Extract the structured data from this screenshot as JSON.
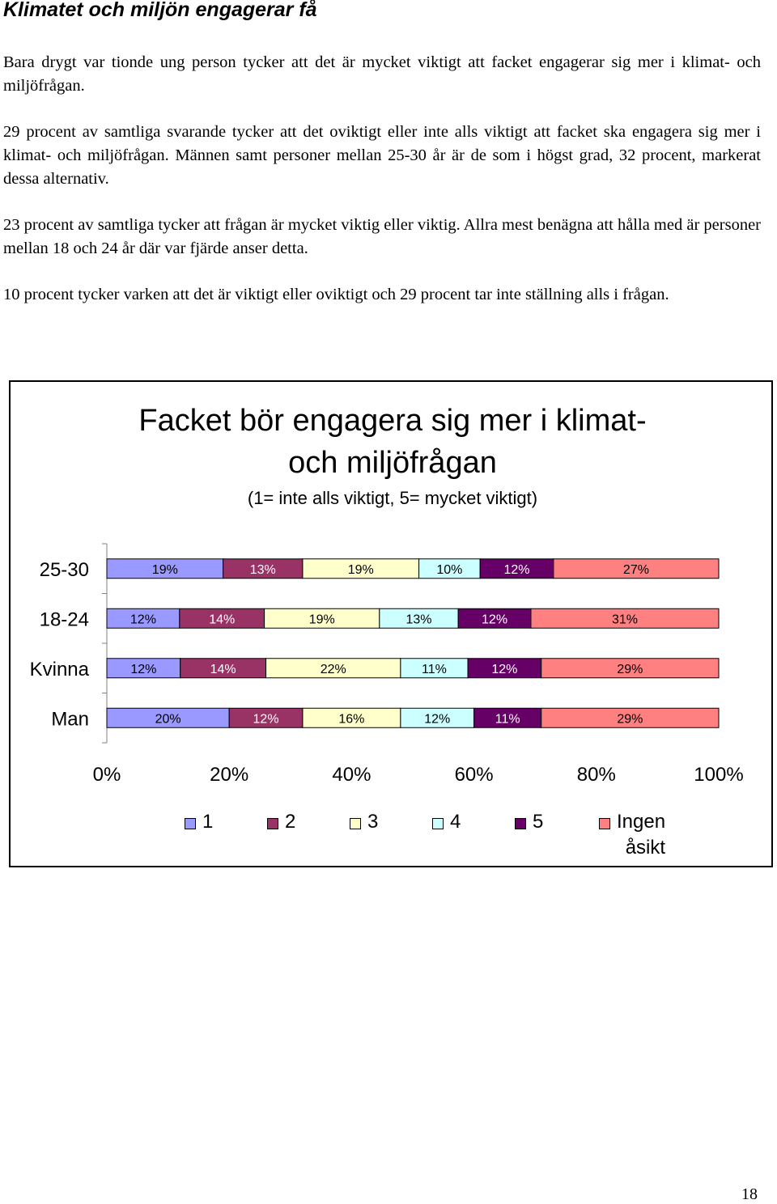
{
  "document": {
    "heading": "Klimatet och miljön engagerar få",
    "paragraphs": [
      "Bara drygt var tionde ung person tycker att det är mycket viktigt att facket engagerar sig mer i klimat- och miljöfrågan.",
      "29 procent av samtliga svarande tycker att det oviktigt eller inte alls viktigt att facket ska engagera sig mer i klimat- och miljöfrågan. Männen samt personer mellan 25-30 år är de som i högst grad, 32 procent, markerat dessa alternativ.",
      "23 procent av samtliga tycker att frågan är mycket viktig eller viktig. Allra mest benägna att hålla med är personer mellan 18 och 24 år där var fjärde anser detta.",
      "10 procent tycker varken att det är viktigt eller oviktigt och 29 procent tar inte ställning alls i frågan."
    ],
    "page_number": "18"
  },
  "chart_data": {
    "type": "bar",
    "orientation": "horizontal",
    "stacked": "percent",
    "title_line1": "Facket bör engagera sig mer i klimat-",
    "title_line2": "och miljöfrågan",
    "subtitle": "(1= inte alls viktigt, 5= mycket viktigt)",
    "categories": [
      "25-30",
      "18-24",
      "Kvinna",
      "Man"
    ],
    "series": [
      {
        "name": "1",
        "color": "#9999ff",
        "values": [
          19,
          12,
          12,
          20
        ]
      },
      {
        "name": "2",
        "color": "#993366",
        "values": [
          13,
          14,
          14,
          12
        ]
      },
      {
        "name": "3",
        "color": "#ffffcc",
        "values": [
          19,
          19,
          22,
          16
        ]
      },
      {
        "name": "4",
        "color": "#ccffff",
        "values": [
          10,
          13,
          11,
          12
        ]
      },
      {
        "name": "5",
        "color": "#660066",
        "values": [
          12,
          12,
          12,
          11
        ]
      },
      {
        "name": "Ingen åsikt",
        "color": "#ff8080",
        "values": [
          27,
          31,
          29,
          29
        ]
      }
    ],
    "data_labels": [
      [
        "19%",
        "13%",
        "19%",
        "10%",
        "12%",
        "27%"
      ],
      [
        "12%",
        "14%",
        "19%",
        "13%",
        "12%",
        "31%"
      ],
      [
        "12%",
        "14%",
        "22%",
        "11%",
        "12%",
        "29%"
      ],
      [
        "20%",
        "12%",
        "16%",
        "12%",
        "11%",
        "29%"
      ]
    ],
    "x_ticks": [
      "0%",
      "20%",
      "40%",
      "60%",
      "80%",
      "100%"
    ],
    "xlim": [
      0,
      100
    ],
    "legend_position": "bottom",
    "grid": false
  }
}
